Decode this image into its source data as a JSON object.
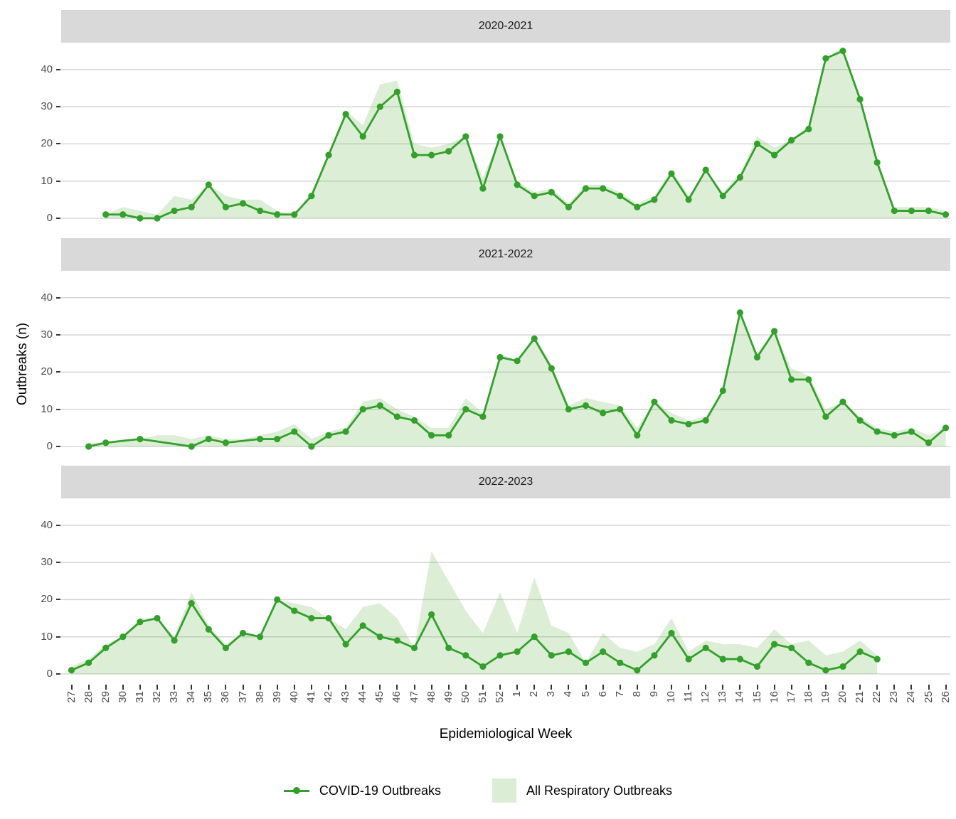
{
  "figure": {
    "y_axis_title": "Outbreaks (n)",
    "x_axis_title": "Epidemiological Week"
  },
  "legend": {
    "covid_label": "COVID-19 Outbreaks",
    "respiratory_label": "All Respiratory Outbreaks"
  },
  "colors": {
    "line_green": "#33a02c",
    "area_fill_rgba": "rgba(119,187,91,0.25)",
    "area_flat": "#dcedd5",
    "strip_bg": "#d9d9d9",
    "gridline": "#d5d5d5",
    "axis_text": "#4d4d4d",
    "tick_mark": "#333333"
  },
  "chart_data": {
    "type": "area",
    "subtype": "faceted line + area, 3 season facets",
    "xlabel": "Epidemiological Week",
    "ylabel": "Outbreaks (n)",
    "y_ticks": [
      0,
      10,
      20,
      30,
      40
    ],
    "ylim": [
      0,
      47
    ],
    "legend_position": "bottom",
    "grid": "horizontal-only",
    "categories": [
      "27",
      "28",
      "29",
      "30",
      "31",
      "32",
      "33",
      "34",
      "35",
      "36",
      "37",
      "38",
      "39",
      "40",
      "41",
      "42",
      "43",
      "44",
      "45",
      "46",
      "47",
      "48",
      "49",
      "50",
      "51",
      "52",
      "1",
      "2",
      "3",
      "4",
      "5",
      "6",
      "7",
      "8",
      "9",
      "10",
      "11",
      "12",
      "13",
      "14",
      "15",
      "16",
      "17",
      "18",
      "19",
      "20",
      "21",
      "22",
      "23",
      "24",
      "25",
      "26"
    ],
    "facets": [
      {
        "title": "2020-2021",
        "series": [
          {
            "name": "COVID-19 Outbreaks",
            "geom": "line+points",
            "values": [
              null,
              null,
              1,
              1,
              0,
              0,
              2,
              3,
              9,
              3,
              4,
              2,
              1,
              1,
              6,
              17,
              28,
              22,
              30,
              34,
              17,
              17,
              18,
              22,
              8,
              22,
              9,
              6,
              7,
              3,
              8,
              8,
              6,
              3,
              5,
              12,
              5,
              13,
              6,
              11,
              20,
              17,
              21,
              24,
              43,
              45,
              32,
              15,
              2,
              2,
              2,
              1
            ]
          },
          {
            "name": "All Respiratory Outbreaks",
            "geom": "area",
            "values": [
              null,
              null,
              1,
              3,
              2,
              1,
              6,
              5,
              9,
              6,
              5,
              5,
              2,
              1,
              7,
              17,
              29,
              25,
              36,
              37,
              20,
              19,
              20,
              22,
              11,
              22,
              10,
              7,
              8,
              4,
              9,
              9,
              7,
              4,
              6,
              13,
              6,
              13,
              7,
              12,
              22,
              19,
              21,
              25,
              43,
              46,
              33,
              16,
              3,
              3,
              3,
              2
            ]
          }
        ]
      },
      {
        "title": "2021-2022",
        "series": [
          {
            "name": "COVID-19 Outbreaks",
            "geom": "line+points",
            "values": [
              null,
              0,
              1,
              null,
              2,
              null,
              null,
              0,
              2,
              1,
              null,
              2,
              2,
              4,
              0,
              3,
              4,
              10,
              11,
              8,
              7,
              3,
              3,
              10,
              8,
              24,
              23,
              29,
              21,
              10,
              11,
              9,
              10,
              3,
              12,
              7,
              6,
              7,
              15,
              36,
              24,
              31,
              18,
              18,
              8,
              12,
              7,
              4,
              3,
              4,
              1,
              5
            ]
          },
          {
            "name": "All Respiratory Outbreaks",
            "geom": "area",
            "values": [
              null,
              1,
              1,
              2,
              2,
              3,
              3,
              2,
              3,
              2,
              2,
              3,
              4,
              6,
              2,
              4,
              5,
              12,
              13,
              10,
              8,
              5,
              5,
              13,
              9,
              25,
              23,
              30,
              22,
              11,
              13,
              12,
              11,
              5,
              12,
              9,
              7,
              8,
              15,
              36,
              25,
              31,
              21,
              19,
              10,
              12,
              8,
              5,
              4,
              5,
              3,
              5
            ]
          }
        ]
      },
      {
        "title": "2022-2023",
        "series": [
          {
            "name": "COVID-19 Outbreaks",
            "geom": "line+points",
            "values": [
              1,
              3,
              7,
              10,
              14,
              15,
              9,
              19,
              12,
              7,
              11,
              10,
              20,
              17,
              15,
              15,
              8,
              13,
              10,
              9,
              7,
              16,
              7,
              5,
              2,
              5,
              6,
              10,
              5,
              6,
              3,
              6,
              3,
              1,
              5,
              11,
              4,
              7,
              4,
              4,
              2,
              8,
              7,
              3,
              1,
              2,
              6,
              4,
              null,
              null,
              null,
              null
            ]
          },
          {
            "name": "All Respiratory Outbreaks",
            "geom": "area",
            "values": [
              2,
              4,
              8,
              10,
              15,
              15,
              10,
              22,
              13,
              8,
              11,
              10,
              20,
              19,
              18,
              15,
              12,
              18,
              19,
              15,
              7,
              33,
              25,
              17,
              11,
              22,
              11,
              26,
              13,
              11,
              3,
              11,
              7,
              6,
              8,
              15,
              6,
              9,
              8,
              8,
              7,
              12,
              8,
              9,
              5,
              6,
              9,
              5,
              null,
              null,
              null,
              null
            ]
          }
        ]
      }
    ]
  }
}
